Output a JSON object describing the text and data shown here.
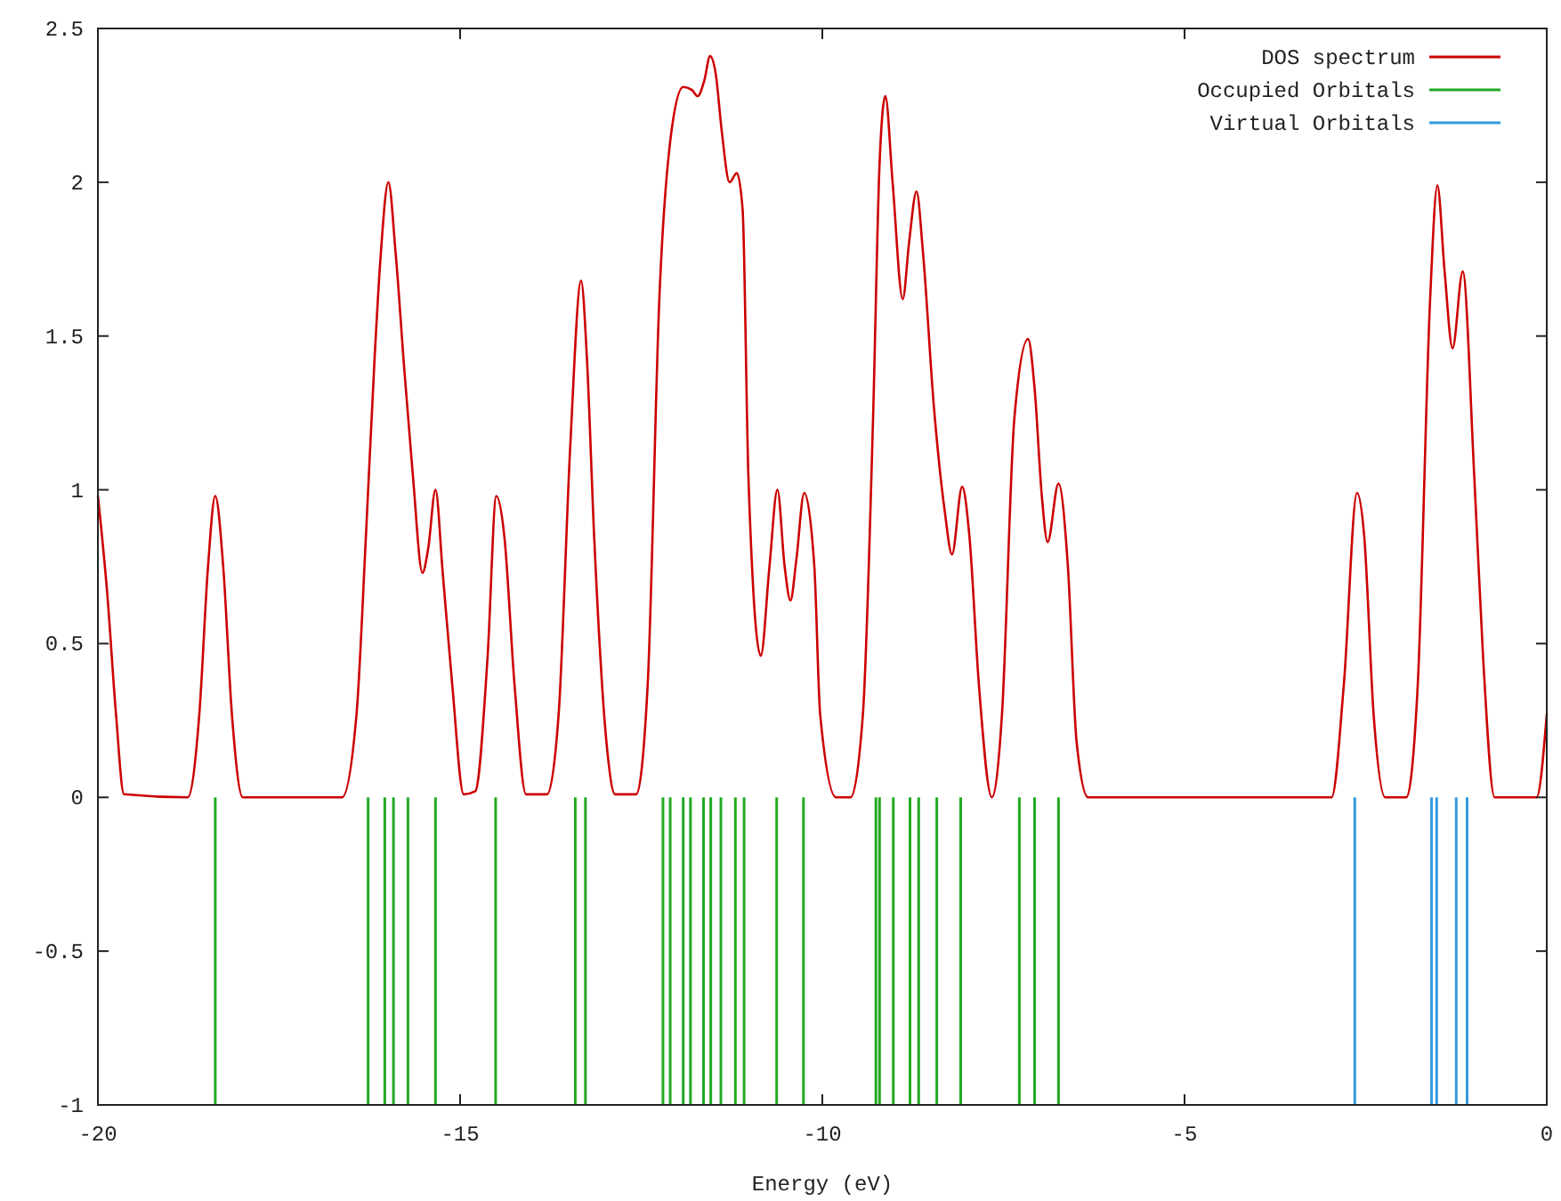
{
  "chart_data": {
    "type": "line",
    "xlabel": "Energy (eV)",
    "xlim": [
      -20,
      0
    ],
    "xticks": [
      -20,
      -15,
      -10,
      -5,
      0
    ],
    "ylim": [
      -1,
      2.5
    ],
    "yticks": [
      -1,
      -0.5,
      0,
      0.5,
      1,
      1.5,
      2,
      2.5
    ],
    "grid": false,
    "legend": "top right",
    "marker": "none",
    "line_style": "solid",
    "series": [
      {
        "name": "DOS spectrum",
        "color": "#cc0000",
        "x": [
          -20,
          -19.87,
          -19.75,
          -19.64,
          -18.76,
          -18.6,
          -18.48,
          -18.38,
          -18.27,
          -18.15,
          -18,
          -16.63,
          -16.43,
          -16.3,
          -16.18,
          -16.1,
          -15.99,
          -15.89,
          -15.77,
          -15.65,
          -15.52,
          -15.44,
          -15.34,
          -15.24,
          -15.11,
          -14.95,
          -14.79,
          -14.62,
          -14.5,
          -14.39,
          -14.25,
          -14.09,
          -13.8,
          -13.64,
          -13.48,
          -13.33,
          -13.25,
          -13.15,
          -12.98,
          -12.86,
          -12.57,
          -12.41,
          -12.25,
          -12.08,
          -11.92,
          -11.8,
          -11.72,
          -11.63,
          -11.55,
          -11.47,
          -11.39,
          -11.28,
          -11.18,
          -11.1,
          -11.02,
          -10.85,
          -10.73,
          -10.62,
          -10.52,
          -10.44,
          -10.36,
          -10.25,
          -10.11,
          -10.03,
          -9.81,
          -9.61,
          -9.44,
          -9.3,
          -9.21,
          -9.13,
          -9.03,
          -8.89,
          -8.8,
          -8.7,
          -8.61,
          -8.46,
          -8.31,
          -8.21,
          -8.07,
          -7.97,
          -7.84,
          -7.66,
          -7.52,
          -7.35,
          -7.16,
          -7.07,
          -6.97,
          -6.89,
          -6.74,
          -6.61,
          -6.49,
          -6.33,
          -2.97,
          -2.8,
          -2.62,
          -2.52,
          -2.39,
          -2.23,
          -1.94,
          -1.78,
          -1.61,
          -1.51,
          -1.41,
          -1.3,
          -1.16,
          -1,
          -0.88,
          -0.72,
          -0.14,
          0
        ],
        "values": [
          0.98,
          0.66,
          0.27,
          0.01,
          0,
          0.27,
          0.75,
          0.98,
          0.75,
          0.27,
          0,
          0,
          0.27,
          0.85,
          1.43,
          1.75,
          2,
          1.77,
          1.39,
          1.04,
          0.73,
          0.81,
          1,
          0.73,
          0.37,
          0.01,
          0.02,
          0.46,
          0.98,
          0.85,
          0.37,
          0.01,
          0.01,
          0.27,
          1.14,
          1.68,
          1.43,
          0.85,
          0.18,
          0.01,
          0.01,
          0.37,
          1.62,
          2.17,
          2.31,
          2.3,
          2.28,
          2.33,
          2.41,
          2.35,
          2.17,
          2,
          2.03,
          1.91,
          1.04,
          0.46,
          0.75,
          1,
          0.75,
          0.64,
          0.77,
          0.99,
          0.75,
          0.27,
          0,
          0,
          0.27,
          1.23,
          2.06,
          2.28,
          2,
          1.62,
          1.81,
          1.97,
          1.77,
          1.27,
          0.93,
          0.79,
          1.01,
          0.85,
          0.37,
          0,
          0.27,
          1.23,
          1.49,
          1.33,
          0.98,
          0.83,
          1.02,
          0.75,
          0.18,
          0,
          0,
          0.37,
          0.99,
          0.85,
          0.27,
          0,
          0,
          0.37,
          1.62,
          1.99,
          1.71,
          1.46,
          1.71,
          1.04,
          0.46,
          0,
          0,
          0.27
        ]
      },
      {
        "name": "Occupied Orbitals",
        "type": "bar",
        "color": "#22aa22",
        "x": [
          -18.38,
          -16.27,
          -16.04,
          -15.92,
          -15.72,
          -15.34,
          -14.51,
          -13.41,
          -13.27,
          -12.2,
          -12.1,
          -11.92,
          -11.82,
          -11.64,
          -11.54,
          -11.4,
          -11.2,
          -11.08,
          -10.63,
          -10.26,
          -9.26,
          -9.21,
          -9.02,
          -8.79,
          -8.67,
          -8.42,
          -8.09,
          -7.28,
          -7.07,
          -6.74
        ],
        "values": [
          -1,
          -1,
          -1,
          -1,
          -1,
          -1,
          -1,
          -1,
          -1,
          -1,
          -1,
          -1,
          -1,
          -1,
          -1,
          -1,
          -1,
          -1,
          -1,
          -1,
          -1,
          -1,
          -1,
          -1,
          -1,
          -1,
          -1,
          -1,
          -1,
          -1
        ]
      },
      {
        "name": "Virtual Orbitals",
        "type": "bar",
        "color": "#3399dd",
        "x": [
          -2.65,
          -1.59,
          -1.52,
          -1.25,
          -1.1
        ],
        "values": [
          -1,
          -1,
          -1,
          -1,
          -1
        ]
      }
    ]
  }
}
